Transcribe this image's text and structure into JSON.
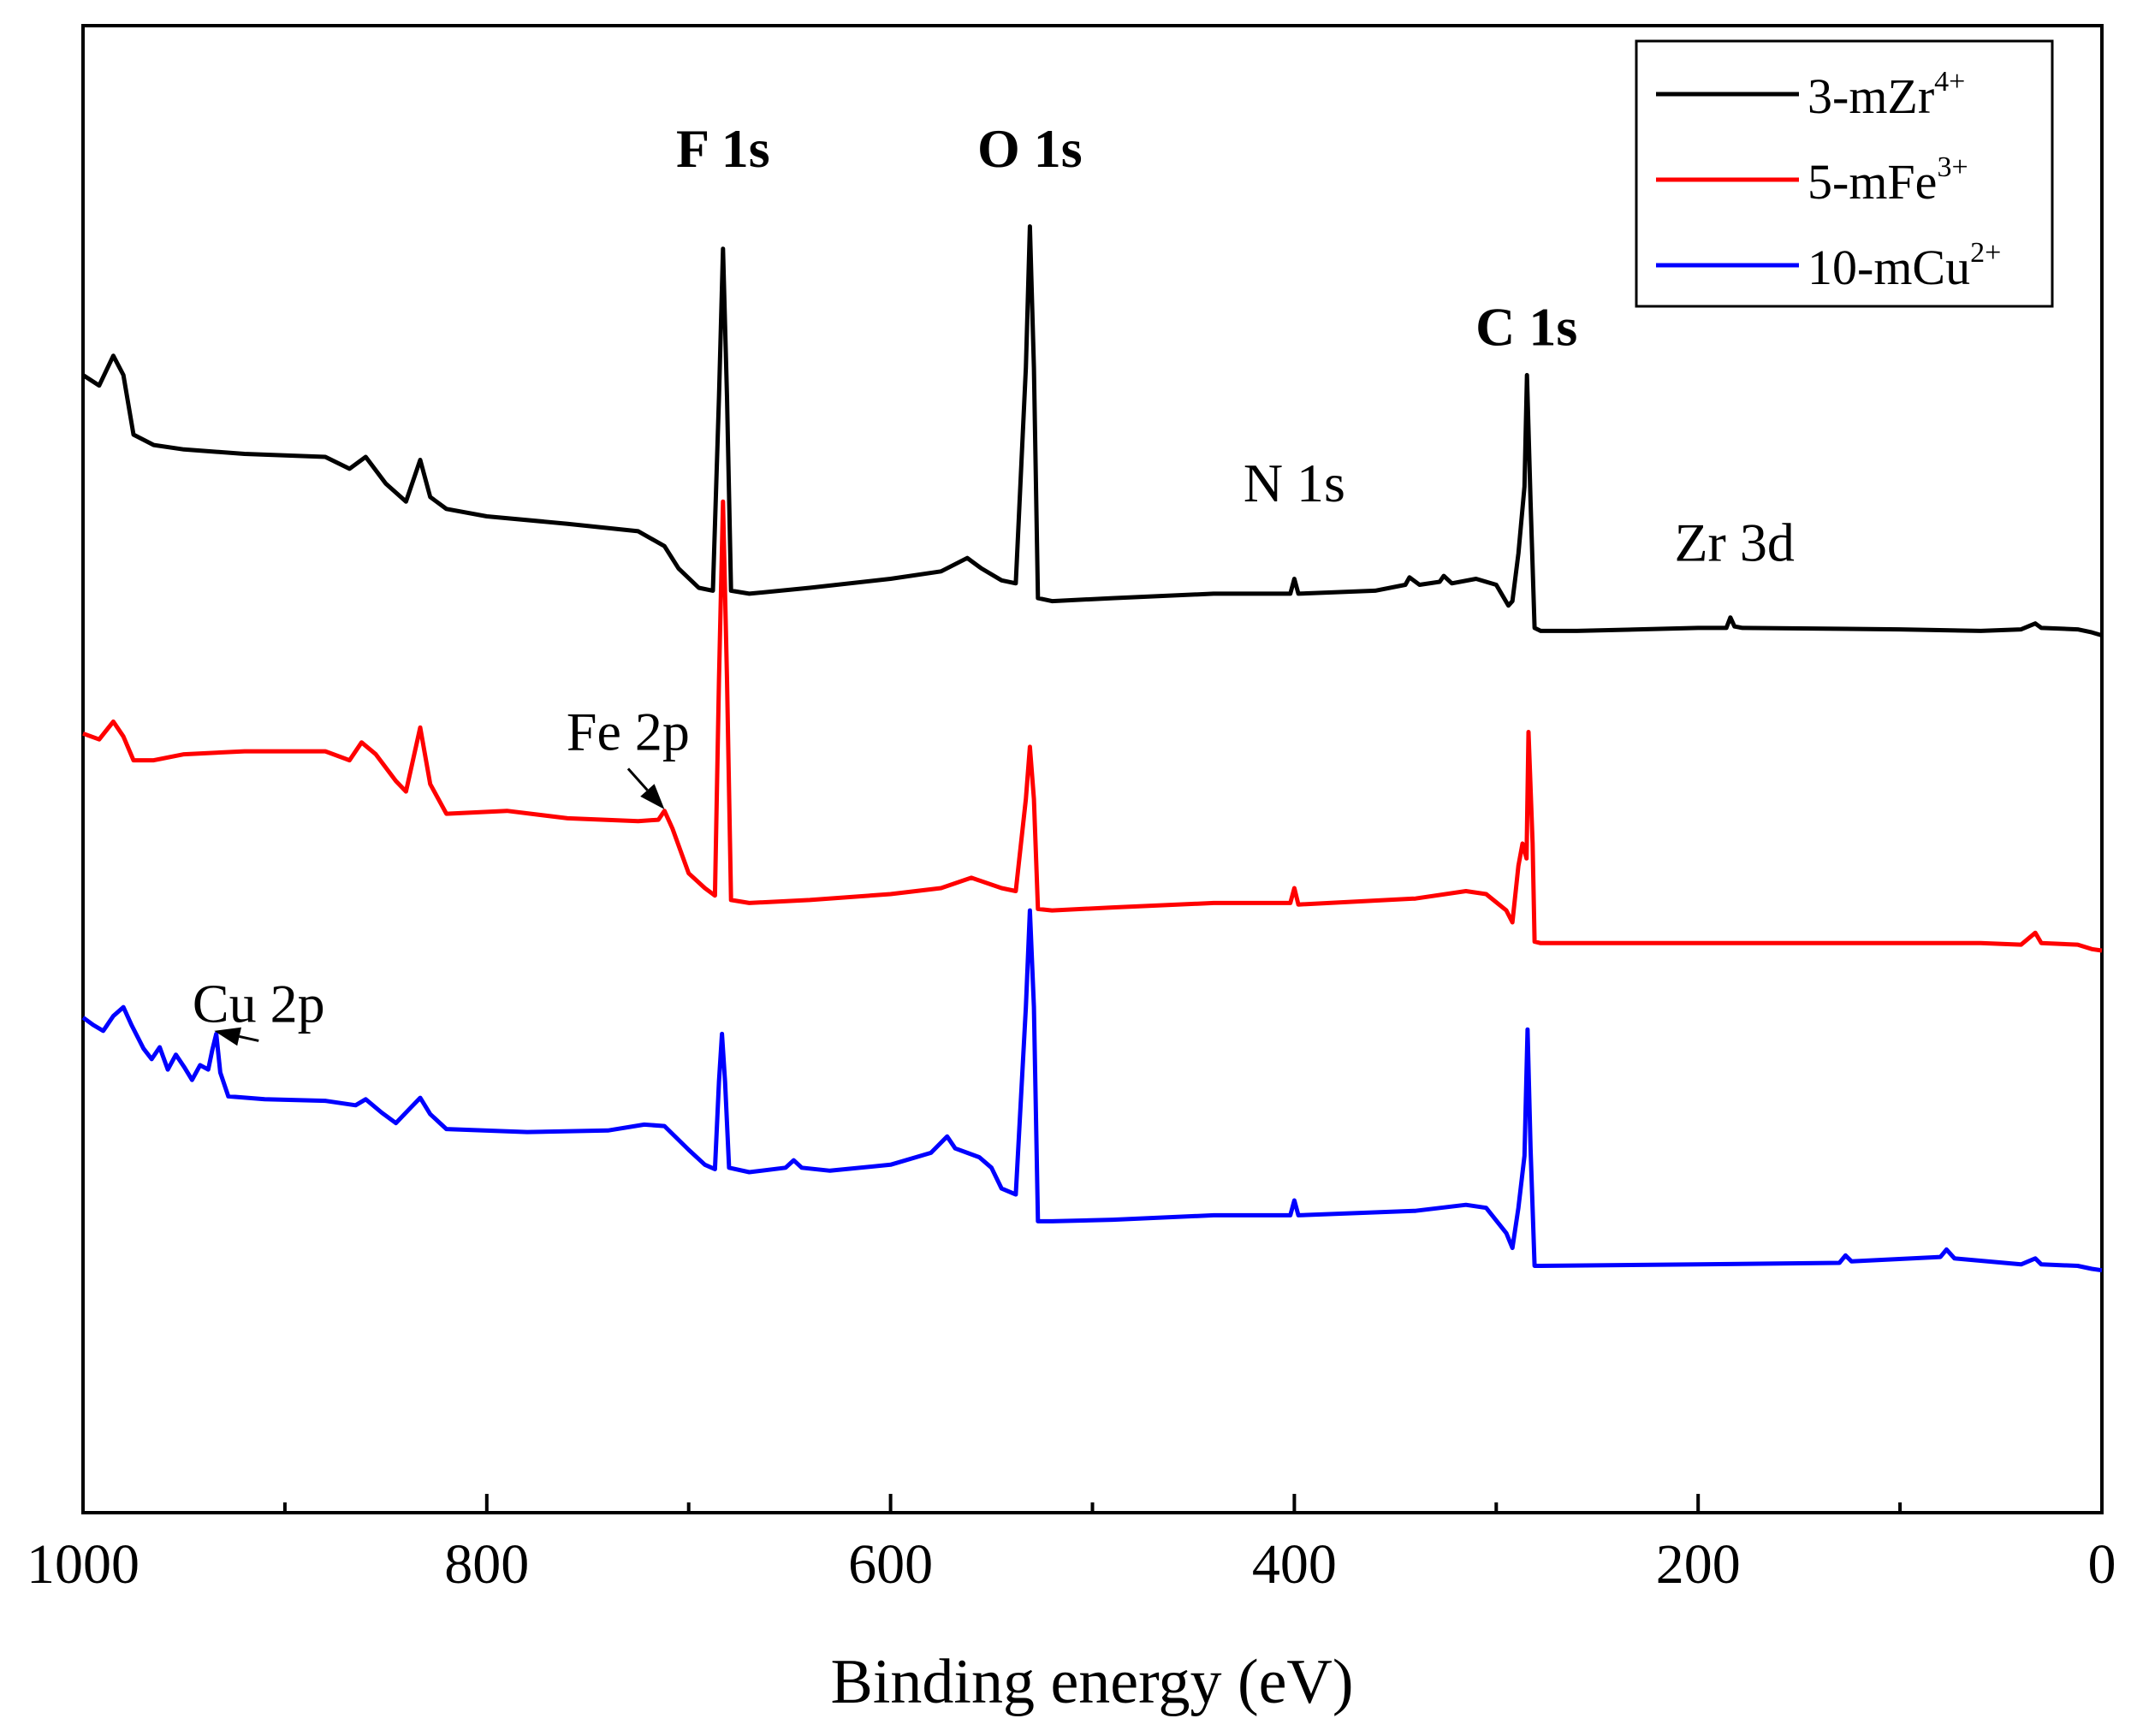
{
  "chart_data": {
    "type": "line",
    "title": "",
    "xlabel": "Binding energy (eV)",
    "ylabel": "",
    "xlim": [
      1000,
      0
    ],
    "x_reversed": true,
    "ylim": [
      0,
      100
    ],
    "y_ticks_shown": false,
    "x_ticks": [
      {
        "value": 1000,
        "label": "1000"
      },
      {
        "value": 800,
        "label": "800"
      },
      {
        "value": 600,
        "label": "600"
      },
      {
        "value": 400,
        "label": "400"
      },
      {
        "value": 200,
        "label": "200"
      },
      {
        "value": 0,
        "label": "0"
      }
    ],
    "series": [
      {
        "name": "3-mZr4+",
        "legend": {
          "base": "3-mZr",
          "sup": "4+"
        },
        "color": "#000000",
        "points": [
          [
            1000,
            76.5
          ],
          [
            992,
            75.8
          ],
          [
            985,
            77.8
          ],
          [
            980,
            76.5
          ],
          [
            975,
            72.5
          ],
          [
            965,
            71.8
          ],
          [
            950,
            71.5
          ],
          [
            920,
            71.2
          ],
          [
            880,
            71.0
          ],
          [
            868,
            70.2
          ],
          [
            860,
            71.0
          ],
          [
            850,
            69.2
          ],
          [
            840,
            68.0
          ],
          [
            833,
            70.8
          ],
          [
            828,
            68.3
          ],
          [
            820,
            67.5
          ],
          [
            800,
            67.0
          ],
          [
            760,
            66.5
          ],
          [
            725,
            66.0
          ],
          [
            712,
            65.0
          ],
          [
            705,
            63.5
          ],
          [
            695,
            62.2
          ],
          [
            688,
            62.0
          ],
          [
            685,
            75.0
          ],
          [
            683,
            85.0
          ],
          [
            681,
            75.0
          ],
          [
            679,
            62.0
          ],
          [
            670,
            61.8
          ],
          [
            640,
            62.2
          ],
          [
            600,
            62.8
          ],
          [
            575,
            63.3
          ],
          [
            562,
            64.2
          ],
          [
            555,
            63.5
          ],
          [
            545,
            62.7
          ],
          [
            538,
            62.5
          ],
          [
            533,
            77.0
          ],
          [
            531,
            86.5
          ],
          [
            529,
            77.0
          ],
          [
            527,
            61.5
          ],
          [
            520,
            61.3
          ],
          [
            490,
            61.5
          ],
          [
            440,
            61.8
          ],
          [
            402,
            61.8
          ],
          [
            400,
            62.8
          ],
          [
            398,
            61.8
          ],
          [
            360,
            62.0
          ],
          [
            345,
            62.4
          ],
          [
            343,
            62.9
          ],
          [
            338,
            62.4
          ],
          [
            328,
            62.6
          ],
          [
            326,
            63.0
          ],
          [
            322,
            62.5
          ],
          [
            310,
            62.8
          ],
          [
            300,
            62.4
          ],
          [
            294,
            61.0
          ],
          [
            292,
            61.3
          ],
          [
            289,
            64.5
          ],
          [
            286,
            69.0
          ],
          [
            284.8,
            76.5
          ],
          [
            283,
            68.0
          ],
          [
            281,
            59.5
          ],
          [
            278,
            59.3
          ],
          [
            260,
            59.3
          ],
          [
            200,
            59.5
          ],
          [
            186,
            59.5
          ],
          [
            184,
            60.2
          ],
          [
            182,
            59.6
          ],
          [
            178,
            59.5
          ],
          [
            100,
            59.4
          ],
          [
            60,
            59.3
          ],
          [
            40,
            59.4
          ],
          [
            33,
            59.8
          ],
          [
            30,
            59.5
          ],
          [
            12,
            59.4
          ],
          [
            5,
            59.2
          ],
          [
            0,
            59.0
          ]
        ]
      },
      {
        "name": "5-mFe3+",
        "legend": {
          "base": "5-mFe",
          "sup": "3+"
        },
        "color": "#ff0000",
        "points": [
          [
            1000,
            52.4
          ],
          [
            992,
            52.0
          ],
          [
            985,
            53.2
          ],
          [
            980,
            52.2
          ],
          [
            975,
            50.6
          ],
          [
            965,
            50.6
          ],
          [
            950,
            51.0
          ],
          [
            920,
            51.2
          ],
          [
            880,
            51.2
          ],
          [
            868,
            50.6
          ],
          [
            862,
            51.8
          ],
          [
            855,
            51.0
          ],
          [
            845,
            49.2
          ],
          [
            840,
            48.5
          ],
          [
            833,
            52.8
          ],
          [
            828,
            49.0
          ],
          [
            820,
            47.0
          ],
          [
            790,
            47.2
          ],
          [
            760,
            46.7
          ],
          [
            725,
            46.5
          ],
          [
            715,
            46.6
          ],
          [
            712,
            47.2
          ],
          [
            708,
            46.0
          ],
          [
            700,
            43.0
          ],
          [
            692,
            42.0
          ],
          [
            687,
            41.5
          ],
          [
            685,
            56.0
          ],
          [
            683,
            68.0
          ],
          [
            681,
            56.0
          ],
          [
            679,
            41.2
          ],
          [
            670,
            41.0
          ],
          [
            640,
            41.2
          ],
          [
            600,
            41.6
          ],
          [
            575,
            42.0
          ],
          [
            560,
            42.7
          ],
          [
            545,
            42.0
          ],
          [
            538,
            41.8
          ],
          [
            533,
            48.0
          ],
          [
            531,
            51.5
          ],
          [
            529,
            48.0
          ],
          [
            527,
            40.6
          ],
          [
            520,
            40.5
          ],
          [
            490,
            40.7
          ],
          [
            440,
            41.0
          ],
          [
            402,
            41.0
          ],
          [
            400,
            42.0
          ],
          [
            398,
            40.9
          ],
          [
            340,
            41.3
          ],
          [
            315,
            41.8
          ],
          [
            305,
            41.6
          ],
          [
            295,
            40.5
          ],
          [
            292,
            39.7
          ],
          [
            289,
            43.5
          ],
          [
            287,
            45.0
          ],
          [
            285,
            44.0
          ],
          [
            284,
            52.5
          ],
          [
            282,
            45.0
          ],
          [
            281,
            38.4
          ],
          [
            278,
            38.3
          ],
          [
            260,
            38.3
          ],
          [
            200,
            38.3
          ],
          [
            100,
            38.3
          ],
          [
            60,
            38.3
          ],
          [
            40,
            38.2
          ],
          [
            33,
            39.0
          ],
          [
            30,
            38.3
          ],
          [
            12,
            38.2
          ],
          [
            5,
            37.9
          ],
          [
            0,
            37.8
          ]
        ]
      },
      {
        "name": "10-mCu2+",
        "legend": {
          "base": "10-mCu",
          "sup": "2+"
        },
        "color": "#0000ff",
        "points": [
          [
            1000,
            33.3
          ],
          [
            995,
            32.8
          ],
          [
            990,
            32.4
          ],
          [
            985,
            33.4
          ],
          [
            980,
            34.0
          ],
          [
            976,
            32.8
          ],
          [
            970,
            31.2
          ],
          [
            966,
            30.5
          ],
          [
            962,
            31.3
          ],
          [
            958,
            29.8
          ],
          [
            954,
            30.8
          ],
          [
            950,
            30.0
          ],
          [
            946,
            29.1
          ],
          [
            942,
            30.1
          ],
          [
            938,
            29.8
          ],
          [
            936,
            31.1
          ],
          [
            934,
            32.2
          ],
          [
            932,
            29.6
          ],
          [
            928,
            28.0
          ],
          [
            910,
            27.8
          ],
          [
            880,
            27.7
          ],
          [
            865,
            27.4
          ],
          [
            860,
            27.8
          ],
          [
            852,
            26.9
          ],
          [
            845,
            26.2
          ],
          [
            838,
            27.2
          ],
          [
            833,
            27.9
          ],
          [
            828,
            26.8
          ],
          [
            820,
            25.8
          ],
          [
            780,
            25.6
          ],
          [
            740,
            25.7
          ],
          [
            722,
            26.1
          ],
          [
            712,
            26.0
          ],
          [
            700,
            24.4
          ],
          [
            692,
            23.4
          ],
          [
            687,
            23.1
          ],
          [
            685,
            29.0
          ],
          [
            683.5,
            32.2
          ],
          [
            682,
            29.0
          ],
          [
            680,
            23.2
          ],
          [
            670,
            22.9
          ],
          [
            652,
            23.2
          ],
          [
            648,
            23.7
          ],
          [
            644,
            23.2
          ],
          [
            630,
            23.0
          ],
          [
            600,
            23.4
          ],
          [
            580,
            24.2
          ],
          [
            572,
            25.3
          ],
          [
            568,
            24.5
          ],
          [
            562,
            24.2
          ],
          [
            556,
            23.9
          ],
          [
            550,
            23.2
          ],
          [
            545,
            21.8
          ],
          [
            538,
            21.4
          ],
          [
            533,
            34.0
          ],
          [
            531,
            40.5
          ],
          [
            529,
            34.0
          ],
          [
            527,
            19.6
          ],
          [
            520,
            19.6
          ],
          [
            490,
            19.7
          ],
          [
            440,
            20.0
          ],
          [
            402,
            20.0
          ],
          [
            400,
            21.0
          ],
          [
            398,
            20.0
          ],
          [
            340,
            20.3
          ],
          [
            315,
            20.7
          ],
          [
            305,
            20.5
          ],
          [
            295,
            18.8
          ],
          [
            292,
            17.8
          ],
          [
            289,
            20.5
          ],
          [
            286,
            24.0
          ],
          [
            284.5,
            32.5
          ],
          [
            283,
            24.5
          ],
          [
            281,
            16.6
          ],
          [
            278,
            16.6
          ],
          [
            200,
            16.7
          ],
          [
            130,
            16.8
          ],
          [
            127,
            17.3
          ],
          [
            124,
            16.9
          ],
          [
            80,
            17.2
          ],
          [
            77,
            17.7
          ],
          [
            73,
            17.1
          ],
          [
            40,
            16.7
          ],
          [
            33,
            17.1
          ],
          [
            30,
            16.7
          ],
          [
            12,
            16.6
          ],
          [
            5,
            16.4
          ],
          [
            0,
            16.3
          ]
        ]
      }
    ],
    "annotations": [
      {
        "text": "F 1s",
        "x": 683,
        "y": 90.5,
        "bold": true
      },
      {
        "text": "O 1s",
        "x": 531,
        "y": 90.5,
        "bold": true
      },
      {
        "text": "C 1s",
        "x": 285,
        "y": 78.5,
        "bold": true
      },
      {
        "text": "N 1s",
        "x": 400,
        "y": 68.0,
        "bold": false
      },
      {
        "text": "Zr 3d",
        "x": 182,
        "y": 64.0,
        "bold": false
      },
      {
        "text": "Fe 2p",
        "x": 730,
        "y": 51.3,
        "bold": false,
        "arrow_to": [
          712,
          47.3
        ]
      },
      {
        "text": "Cu 2p",
        "x": 913,
        "y": 33.0,
        "bold": false,
        "arrow_to": [
          935,
          32.4
        ]
      }
    ],
    "legend_position": "top-right",
    "grid": false
  }
}
